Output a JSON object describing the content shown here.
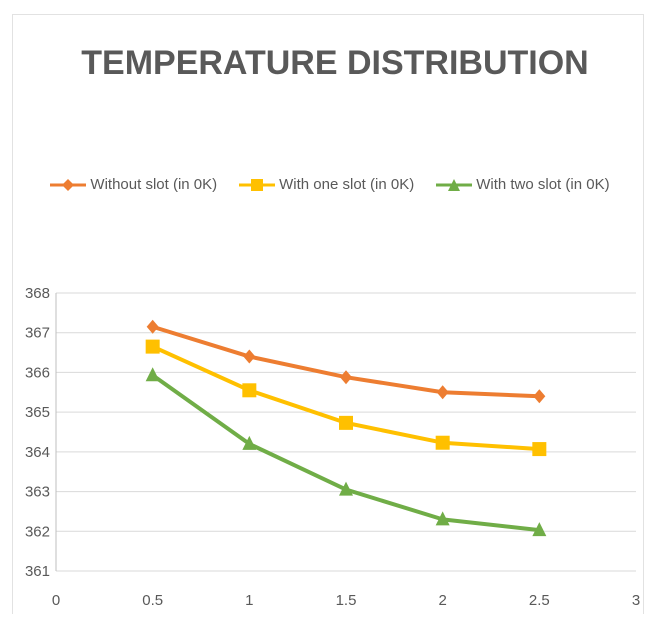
{
  "chart_data": {
    "type": "line",
    "title": "TEMPERATURE DISTRIBUTION",
    "xlabel": "",
    "ylabel": "",
    "x": [
      0.5,
      1,
      1.5,
      2,
      2.5
    ],
    "xlim": [
      0,
      3
    ],
    "ylim": [
      361,
      368
    ],
    "x_ticks": [
      "0",
      "0.5",
      "1",
      "1.5",
      "2",
      "2.5",
      "3"
    ],
    "y_ticks": [
      "361",
      "362",
      "363",
      "364",
      "365",
      "366",
      "367",
      "368"
    ],
    "grid": "horizontal",
    "legend_position": "top",
    "series": [
      {
        "name": "Without slot (in 0K)",
        "color": "#ED7D31",
        "marker": "diamond",
        "values": [
          367.15,
          366.4,
          365.88,
          365.5,
          365.4
        ]
      },
      {
        "name": "With one slot (in 0K)",
        "color": "#FFC000",
        "marker": "square",
        "values": [
          366.65,
          365.55,
          364.73,
          364.23,
          364.07
        ]
      },
      {
        "name": "With two slot (in 0K)",
        "color": "#70AD47",
        "marker": "triangle",
        "values": [
          365.93,
          364.2,
          363.05,
          362.3,
          362.03
        ]
      }
    ]
  }
}
